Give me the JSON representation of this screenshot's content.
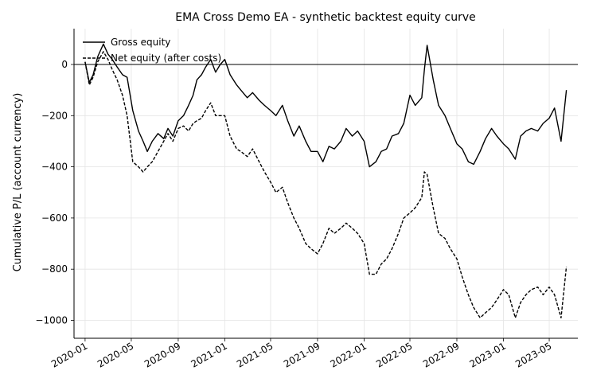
{
  "chart_data": {
    "type": "line",
    "title": "EMA Cross Demo EA - synthetic backtest equity curve",
    "xlabel": "",
    "ylabel": "Cumulative P/L (account currency)",
    "x_ticks": [
      "2020-01",
      "2020-05",
      "2020-09",
      "2021-01",
      "2021-05",
      "2021-09",
      "2022-01",
      "2022-05",
      "2022-09",
      "2023-01",
      "2023-05"
    ],
    "y_ticks": [
      0,
      -200,
      -400,
      -600,
      -800,
      -1000
    ],
    "xlim": [
      "2019-12-03",
      "2023-07-15"
    ],
    "ylim": [
      -1070,
      140
    ],
    "grid": true,
    "legend_position": "top-left",
    "zero_line": true,
    "series": [
      {
        "name": "Gross equity",
        "style": "solid",
        "color": "#000000",
        "x": [
          "2020-01-01",
          "2020-01-12",
          "2020-01-22",
          "2020-02-03",
          "2020-02-18",
          "2020-03-01",
          "2020-03-12",
          "2020-03-25",
          "2020-04-08",
          "2020-04-20",
          "2020-05-05",
          "2020-05-20",
          "2020-06-01",
          "2020-06-12",
          "2020-06-25",
          "2020-07-10",
          "2020-07-25",
          "2020-08-05",
          "2020-08-18",
          "2020-09-01",
          "2020-09-15",
          "2020-09-28",
          "2020-10-10",
          "2020-10-20",
          "2020-11-01",
          "2020-11-12",
          "2020-11-25",
          "2020-12-08",
          "2020-12-20",
          "2021-01-01",
          "2021-01-15",
          "2021-02-01",
          "2021-02-12",
          "2021-03-01",
          "2021-03-15",
          "2021-04-01",
          "2021-04-15",
          "2021-05-01",
          "2021-05-15",
          "2021-06-01",
          "2021-06-15",
          "2021-07-01",
          "2021-07-15",
          "2021-08-01",
          "2021-08-15",
          "2021-09-01",
          "2021-09-15",
          "2021-10-01",
          "2021-10-15",
          "2021-11-01",
          "2021-11-15",
          "2021-12-01",
          "2021-12-15",
          "2022-01-01",
          "2022-01-15",
          "2022-02-01",
          "2022-02-15",
          "2022-03-01",
          "2022-03-15",
          "2022-04-01",
          "2022-04-15",
          "2022-05-01",
          "2022-05-15",
          "2022-06-01",
          "2022-06-08",
          "2022-06-15",
          "2022-07-01",
          "2022-07-15",
          "2022-08-01",
          "2022-08-15",
          "2022-09-01",
          "2022-09-15",
          "2022-10-01",
          "2022-10-15",
          "2022-11-01",
          "2022-11-15",
          "2022-12-01",
          "2022-12-15",
          "2023-01-01",
          "2023-01-15",
          "2023-02-01",
          "2023-02-15",
          "2023-03-01",
          "2023-03-15",
          "2023-04-01",
          "2023-04-15",
          "2023-05-01",
          "2023-05-15",
          "2023-06-01",
          "2023-06-15"
        ],
        "y": [
          10,
          -70,
          -40,
          30,
          80,
          40,
          20,
          -10,
          -40,
          -50,
          -180,
          -260,
          -300,
          -340,
          -300,
          -270,
          -290,
          -250,
          -280,
          -220,
          -200,
          -160,
          -120,
          -60,
          -40,
          -10,
          20,
          -30,
          0,
          20,
          -40,
          -80,
          -100,
          -130,
          -110,
          -140,
          -160,
          -180,
          -200,
          -160,
          -220,
          -280,
          -240,
          -300,
          -340,
          -340,
          -380,
          -320,
          -330,
          -300,
          -250,
          -280,
          -260,
          -300,
          -400,
          -380,
          -340,
          -330,
          -280,
          -270,
          -230,
          -120,
          -160,
          -130,
          -20,
          75,
          -60,
          -160,
          -200,
          -250,
          -310,
          -330,
          -380,
          -390,
          -340,
          -290,
          -250,
          -280,
          -310,
          -330,
          -370,
          -280,
          -260,
          -250,
          -260,
          -230,
          -210,
          -170,
          -300,
          -100
        ]
      },
      {
        "name": "Net equity (after costs)",
        "style": "dashed",
        "color": "#000000",
        "x": [
          "2020-01-01",
          "2020-01-12",
          "2020-01-22",
          "2020-02-03",
          "2020-02-18",
          "2020-03-01",
          "2020-03-12",
          "2020-03-25",
          "2020-04-08",
          "2020-04-20",
          "2020-05-05",
          "2020-05-20",
          "2020-06-01",
          "2020-06-12",
          "2020-06-25",
          "2020-07-10",
          "2020-07-25",
          "2020-08-05",
          "2020-08-18",
          "2020-09-01",
          "2020-09-15",
          "2020-09-28",
          "2020-10-10",
          "2020-10-20",
          "2020-11-01",
          "2020-11-12",
          "2020-11-25",
          "2020-12-08",
          "2020-12-20",
          "2021-01-01",
          "2021-01-15",
          "2021-02-01",
          "2021-02-12",
          "2021-03-01",
          "2021-03-15",
          "2021-04-01",
          "2021-04-15",
          "2021-05-01",
          "2021-05-15",
          "2021-06-01",
          "2021-06-15",
          "2021-07-01",
          "2021-07-15",
          "2021-08-01",
          "2021-08-15",
          "2021-09-01",
          "2021-09-15",
          "2021-10-01",
          "2021-10-15",
          "2021-11-01",
          "2021-11-15",
          "2021-12-01",
          "2021-12-15",
          "2022-01-01",
          "2022-01-15",
          "2022-02-01",
          "2022-02-15",
          "2022-03-01",
          "2022-03-15",
          "2022-04-01",
          "2022-04-15",
          "2022-05-01",
          "2022-05-15",
          "2022-06-01",
          "2022-06-08",
          "2022-06-15",
          "2022-07-01",
          "2022-07-15",
          "2022-08-01",
          "2022-08-15",
          "2022-09-01",
          "2022-09-15",
          "2022-10-01",
          "2022-10-15",
          "2022-11-01",
          "2022-11-15",
          "2022-12-01",
          "2022-12-15",
          "2023-01-01",
          "2023-01-15",
          "2023-02-01",
          "2023-02-15",
          "2023-03-01",
          "2023-03-15",
          "2023-04-01",
          "2023-04-15",
          "2023-05-01",
          "2023-05-15",
          "2023-06-01",
          "2023-06-15"
        ],
        "y": [
          10,
          -80,
          -50,
          10,
          50,
          20,
          -20,
          -60,
          -120,
          -200,
          -380,
          -400,
          -420,
          -400,
          -380,
          -340,
          -300,
          -270,
          -300,
          -250,
          -240,
          -260,
          -230,
          -220,
          -210,
          -180,
          -150,
          -200,
          -200,
          -200,
          -280,
          -330,
          -340,
          -360,
          -330,
          -380,
          -420,
          -460,
          -500,
          -480,
          -540,
          -600,
          -640,
          -700,
          -720,
          -740,
          -700,
          -640,
          -660,
          -640,
          -620,
          -640,
          -660,
          -700,
          -820,
          -820,
          -780,
          -760,
          -720,
          -660,
          -600,
          -580,
          -560,
          -520,
          -420,
          -430,
          -560,
          -660,
          -680,
          -720,
          -760,
          -830,
          -900,
          -950,
          -990,
          -970,
          -950,
          -920,
          -880,
          -900,
          -990,
          -930,
          -900,
          -880,
          -870,
          -900,
          -870,
          -900,
          -990,
          -790
        ]
      }
    ]
  }
}
